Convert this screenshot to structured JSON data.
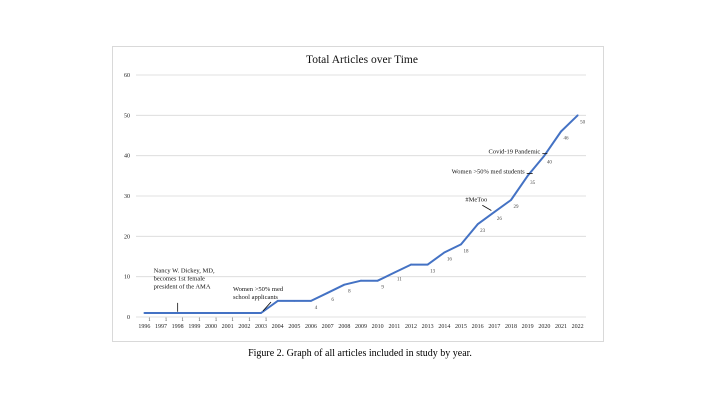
{
  "caption": "Figure 2. Graph of all articles included in study by year.",
  "chart_data": {
    "type": "line",
    "title": "Total Articles over Time",
    "xlabel": "",
    "ylabel": "",
    "x": [
      "1996",
      "1997",
      "1998",
      "1999",
      "2000",
      "2001",
      "2002",
      "2003",
      "2004",
      "2005",
      "2006",
      "2007",
      "2008",
      "2009",
      "2010",
      "2011",
      "2012",
      "2013",
      "2014",
      "2015",
      "2016",
      "2017",
      "2018",
      "2019",
      "2020",
      "2021",
      "2022"
    ],
    "values": [
      1,
      1,
      1,
      1,
      1,
      1,
      1,
      1,
      4,
      4,
      4,
      6,
      8,
      9,
      9,
      11,
      13,
      13,
      16,
      18,
      23,
      26,
      29,
      35,
      40,
      46,
      50
    ],
    "data_labels": [
      "1",
      "1",
      "1",
      "1",
      "1",
      "1",
      "1",
      "1",
      "",
      "",
      "4",
      "6",
      "8",
      "",
      "9",
      "11",
      "",
      "13",
      "16",
      "18",
      "23",
      "26",
      "29",
      "35",
      "40",
      "46",
      "50"
    ],
    "ylim": [
      0,
      60
    ],
    "yticks": [
      0,
      10,
      20,
      30,
      40,
      50,
      60
    ],
    "grid": true,
    "line_color": "#4472c4",
    "gridline_color": "#d9d9d9",
    "annotations": [
      {
        "lines": [
          "Nancy W. Dickey, MD,",
          "becomes 1st female",
          "president of the AMA"
        ],
        "year": "1998"
      },
      {
        "lines": [
          "Women >50% med",
          "school applicants"
        ],
        "year": "2003"
      },
      {
        "lines": [
          "#MeToo"
        ],
        "year": "2017"
      },
      {
        "lines": [
          "Women >50%  med students"
        ],
        "year": "2019"
      },
      {
        "lines": [
          "Covid-19 Pandemic"
        ],
        "year": "2020"
      }
    ]
  }
}
